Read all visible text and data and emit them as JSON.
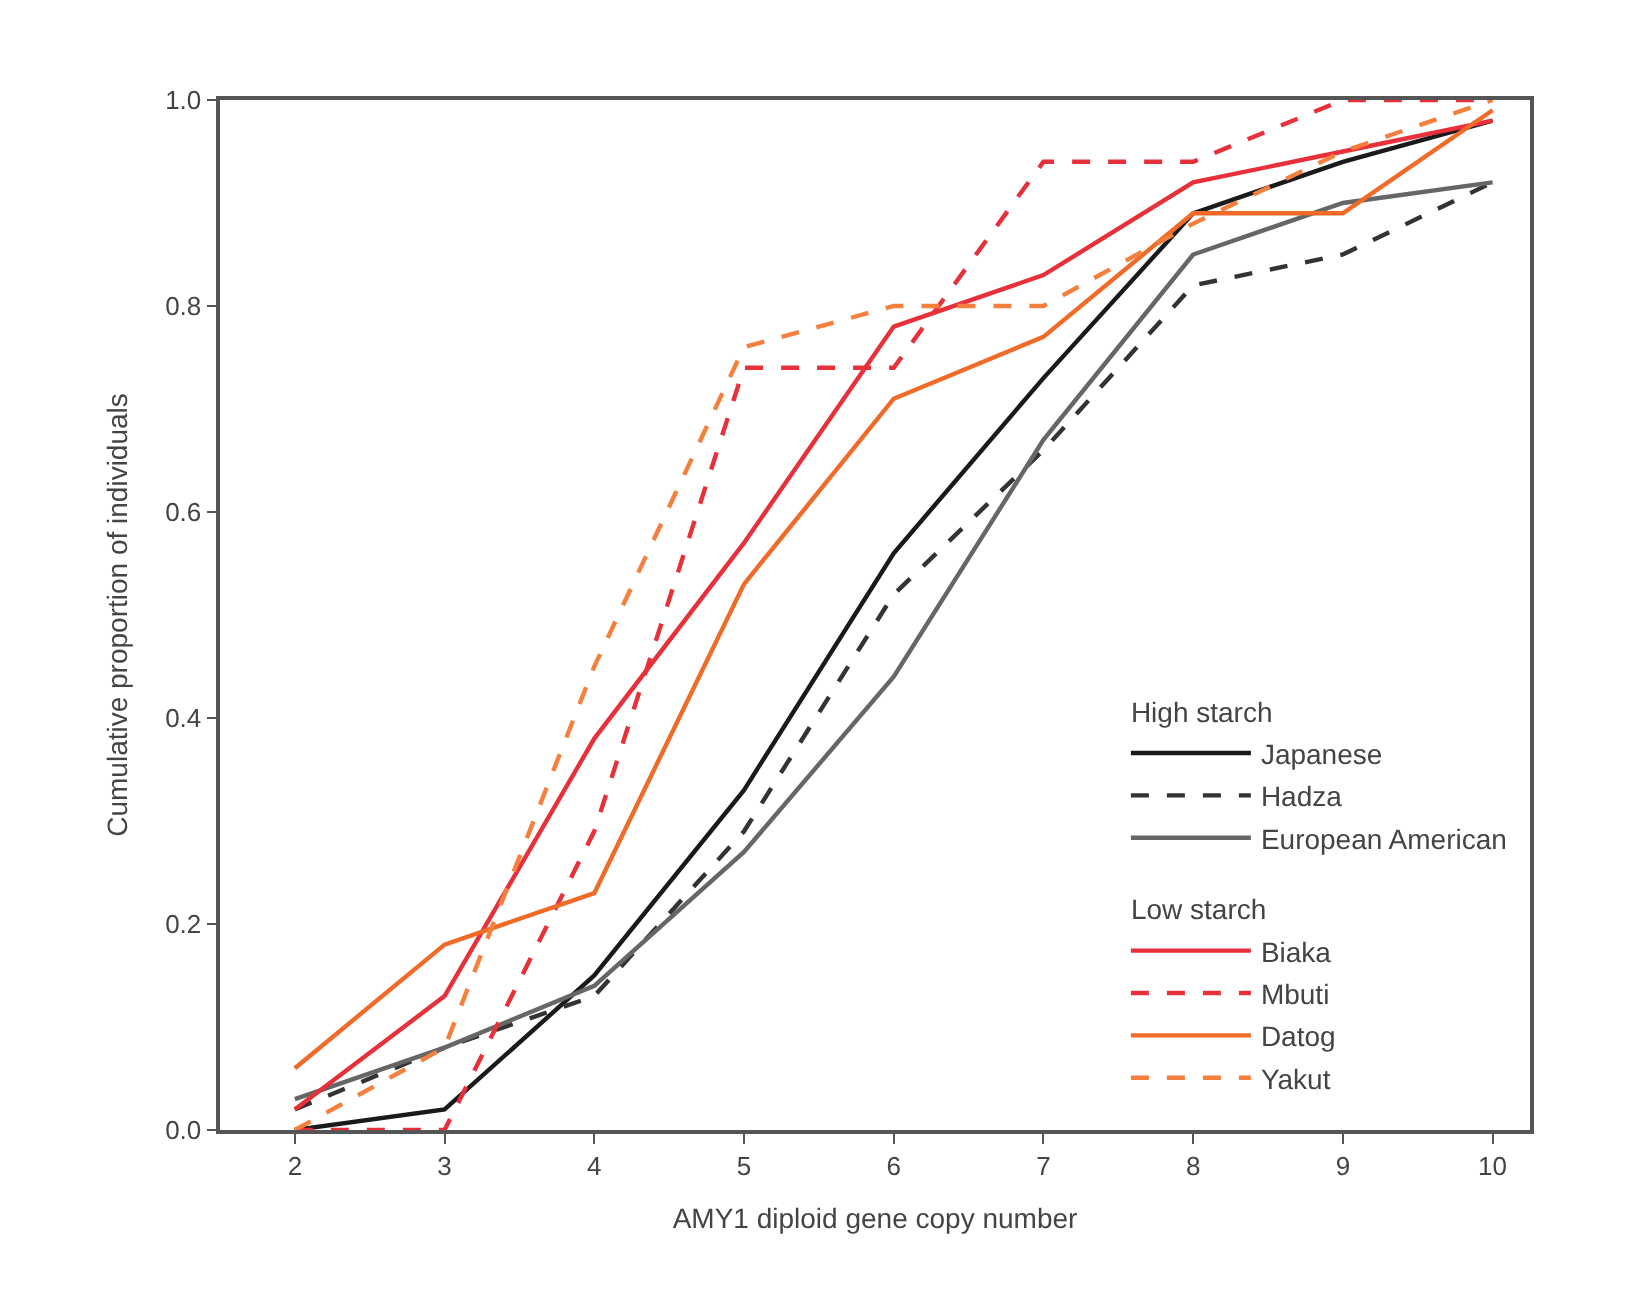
{
  "chart_data": {
    "type": "line",
    "xlabel": "AMY1 diploid gene copy number",
    "ylabel": "Cumulative proportion of individuals",
    "x": [
      2,
      3,
      4,
      5,
      6,
      7,
      8,
      9,
      10
    ],
    "xlim": [
      1.5,
      10.25
    ],
    "xticks": [
      2,
      3,
      4,
      5,
      6,
      7,
      8,
      9,
      10
    ],
    "ylim": [
      0,
      1
    ],
    "yticks": [
      {
        "value": 0,
        "label": "0.0"
      },
      {
        "value": 0.2,
        "label": "0.2"
      },
      {
        "value": 0.4,
        "label": "0.4"
      },
      {
        "value": 0.6,
        "label": "0.6"
      },
      {
        "value": 0.8,
        "label": "0.8"
      },
      {
        "value": 1,
        "label": "1.0"
      }
    ],
    "legend": "right",
    "marker": "none",
    "annotations": [
      "High starch",
      "Low starch"
    ],
    "series": [
      {
        "name": "Japanese",
        "color": "#1a1a1a",
        "line_style": "solid",
        "values": [
          0.0,
          0.02,
          0.15,
          0.33,
          0.56,
          0.73,
          0.89,
          0.94,
          0.98
        ]
      },
      {
        "name": "Hadza",
        "color": "#333333",
        "line_style": "dashed",
        "values": [
          0.02,
          0.08,
          0.13,
          0.29,
          0.52,
          0.66,
          0.82,
          0.85,
          0.92
        ]
      },
      {
        "name": "European American",
        "color": "#666666",
        "line_style": "solid",
        "values": [
          0.03,
          0.08,
          0.14,
          0.27,
          0.44,
          0.67,
          0.85,
          0.9,
          0.92
        ]
      },
      {
        "name": "Biaka",
        "color": "#e8303a",
        "line_style": "solid",
        "values": [
          0.02,
          0.13,
          0.38,
          0.57,
          0.78,
          0.83,
          0.92,
          0.95,
          0.98
        ]
      },
      {
        "name": "Mbuti",
        "color": "#e8303a",
        "line_style": "dashed",
        "values": [
          0.0,
          0.0,
          0.29,
          0.74,
          0.74,
          0.94,
          0.94,
          1.0,
          1.0
        ]
      },
      {
        "name": "Datog",
        "color": "#f06a28",
        "line_style": "solid",
        "values": [
          0.06,
          0.18,
          0.23,
          0.53,
          0.71,
          0.77,
          0.89,
          0.89,
          0.99
        ]
      },
      {
        "name": "Yakut",
        "color": "#f5803e",
        "line_style": "dashed",
        "values": [
          0.0,
          0.08,
          0.45,
          0.76,
          0.8,
          0.8,
          0.88,
          0.95,
          1.0
        ]
      }
    ]
  }
}
